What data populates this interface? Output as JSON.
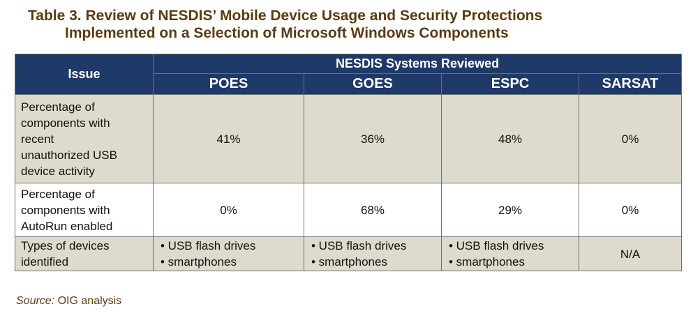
{
  "title": {
    "line1": "Table 3. Review of NESDIS’ Mobile Device Usage and Security Protections",
    "line2": "Implemented on a Selection of Microsoft Windows Components"
  },
  "table": {
    "issue_header": "Issue",
    "group_header": "NESDIS Systems Reviewed",
    "systems": [
      "POES",
      "GOES",
      "ESPC",
      "SARSAT"
    ],
    "rows": [
      {
        "issue_lines": [
          "Percentage of",
          "components with",
          "recent",
          "unauthorized USB",
          "device activity"
        ],
        "values": [
          "41%",
          "36%",
          "48%",
          "0%"
        ]
      },
      {
        "issue_lines": [
          "Percentage of",
          "components with",
          "AutoRun enabled"
        ],
        "values": [
          "0%",
          "68%",
          "29%",
          "0%"
        ]
      },
      {
        "issue_lines": [
          "Types of devices",
          "identified"
        ],
        "lists": [
          [
            "• USB flash drives",
            "• smartphones"
          ],
          [
            "• USB flash drives",
            "• smartphones"
          ],
          [
            "• USB flash drives",
            "• smartphones"
          ]
        ],
        "last": "N/A"
      }
    ]
  },
  "source": {
    "label": "Source:",
    "text": " OIG analysis"
  }
}
